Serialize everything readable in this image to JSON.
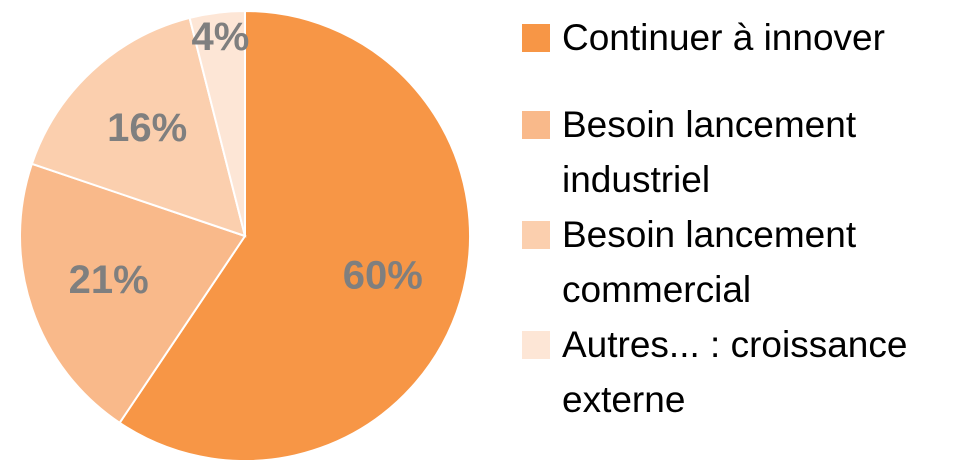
{
  "chart_data": {
    "type": "pie",
    "categories": [
      "Continuer à innover",
      "Besoin lancement industriel",
      "Besoin lancement commercial",
      "Autres... : croissance externe"
    ],
    "values": [
      60,
      21,
      16,
      4
    ],
    "value_labels": [
      "60%",
      "21%",
      "16%",
      "4%"
    ],
    "colors": [
      "#f79646",
      "#f9b98a",
      "#fbcfae",
      "#fde6d6"
    ],
    "legend": "right"
  }
}
